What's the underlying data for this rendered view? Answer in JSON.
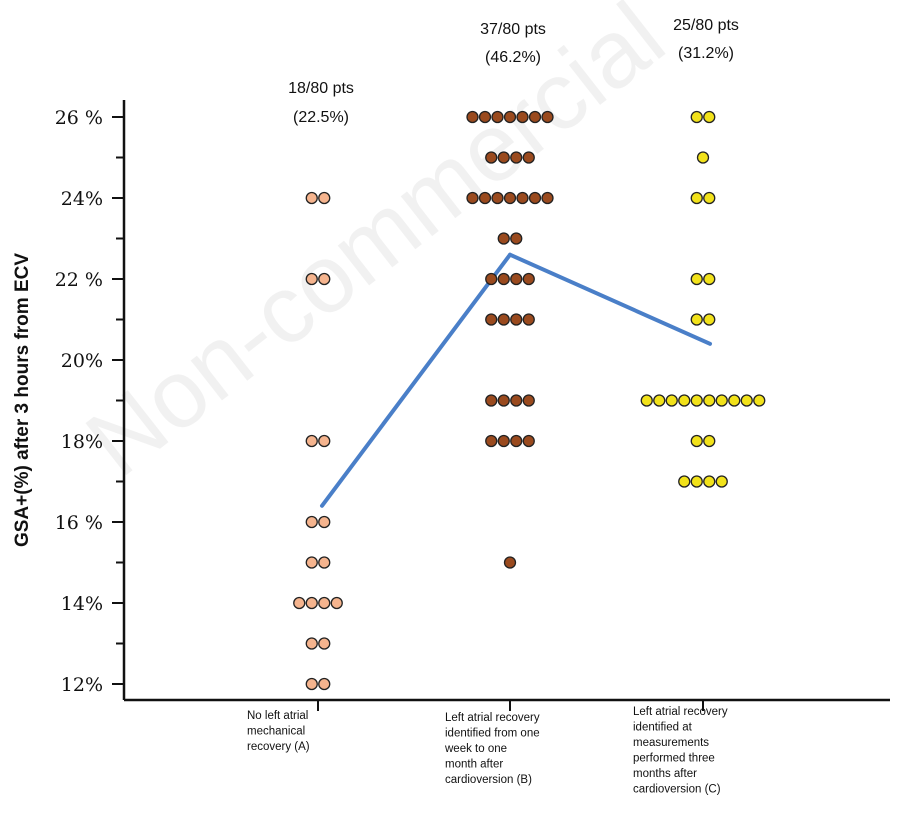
{
  "watermark": "Non-commercial",
  "chart_data": {
    "type": "scatter",
    "title": "",
    "ylabel": "GSA+(%) after 3 hours from ECV",
    "xlabel": "",
    "ylim": [
      12,
      26
    ],
    "yticks": [
      {
        "value": 12,
        "label": "12%"
      },
      {
        "value": 14,
        "label": "14%"
      },
      {
        "value": 16,
        "label": "16 %"
      },
      {
        "value": 18,
        "label": "18%"
      },
      {
        "value": 20,
        "label": "20%"
      },
      {
        "value": 22,
        "label": "22 %"
      },
      {
        "value": 24,
        "label": "24%"
      },
      {
        "value": 26,
        "label": "26 %"
      }
    ],
    "grid": false,
    "categories": [
      {
        "label_lines": [
          "No left atrial",
          "mechanical",
          "recovery (A)"
        ],
        "count_lines": [
          "18/80 pts",
          "(22.5%)"
        ],
        "color": "#f5b48e",
        "points": [
          {
            "y": 24,
            "n": 2
          },
          {
            "y": 22,
            "n": 2
          },
          {
            "y": 18,
            "n": 2
          },
          {
            "y": 16,
            "n": 2
          },
          {
            "y": 15,
            "n": 2
          },
          {
            "y": 14,
            "n": 4
          },
          {
            "y": 13,
            "n": 2
          },
          {
            "y": 12,
            "n": 2
          }
        ]
      },
      {
        "label_lines": [
          "Left atrial recovery",
          "identified from one",
          "week to one",
          "month after",
          "cardioversion (B)"
        ],
        "count_lines": [
          "37/80 pts",
          "(46.2%)"
        ],
        "color": "#9a4a1e",
        "points": [
          {
            "y": 26,
            "n": 7
          },
          {
            "y": 25,
            "n": 4
          },
          {
            "y": 24,
            "n": 7
          },
          {
            "y": 23,
            "n": 2
          },
          {
            "y": 22,
            "n": 4
          },
          {
            "y": 21,
            "n": 4
          },
          {
            "y": 19,
            "n": 4
          },
          {
            "y": 18,
            "n": 4
          },
          {
            "y": 15,
            "n": 1
          }
        ]
      },
      {
        "label_lines": [
          "Left atrial recovery",
          "identified at",
          "measurements",
          "performed three",
          "months after",
          "cardioversion (C)"
        ],
        "count_lines": [
          "25/80 pts",
          "(31.2%)"
        ],
        "color": "#f2e21a",
        "points": [
          {
            "y": 26,
            "n": 2
          },
          {
            "y": 25,
            "n": 1
          },
          {
            "y": 24,
            "n": 2
          },
          {
            "y": 22,
            "n": 2
          },
          {
            "y": 21,
            "n": 2
          },
          {
            "y": 19,
            "n": 10
          },
          {
            "y": 18,
            "n": 2
          },
          {
            "y": 17,
            "n": 4
          }
        ]
      }
    ],
    "mean_line": {
      "color": "#4a7fc8",
      "segments": [
        {
          "from_category": 0,
          "from_y": 16.4,
          "to_category": 1,
          "to_y": 22.6
        },
        {
          "from_category": 1,
          "from_y": 22.6,
          "to_category": 2,
          "to_y": 20.4
        }
      ]
    }
  }
}
